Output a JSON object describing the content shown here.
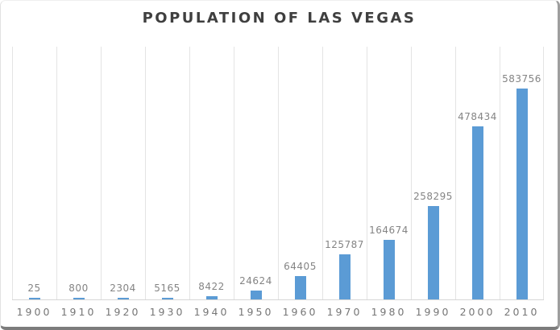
{
  "chart_data": {
    "type": "bar",
    "title": "POPULATION OF LAS VEGAS",
    "categories": [
      "1900",
      "1910",
      "1920",
      "1930",
      "1940",
      "1950",
      "1960",
      "1970",
      "1980",
      "1990",
      "2000",
      "2010"
    ],
    "values": [
      25,
      800,
      2304,
      5165,
      8422,
      24624,
      64405,
      125787,
      164674,
      258295,
      478434,
      583756
    ],
    "xlabel": "",
    "ylabel": "",
    "ylim": [
      0,
      700000
    ],
    "y_axis_labels_visible": false,
    "grid": "vertical-between-categories",
    "legend": "none",
    "data_labels_visible": true,
    "colors": {
      "bar": "#5B9BD5",
      "title": "#3f3f3f",
      "data_label": "#848484",
      "category_label": "#767676",
      "gridline": "#e4e4e4",
      "axis_line": "#d6d6d6",
      "frame_border": "#7c7c7c",
      "background": "#ffffff"
    }
  }
}
